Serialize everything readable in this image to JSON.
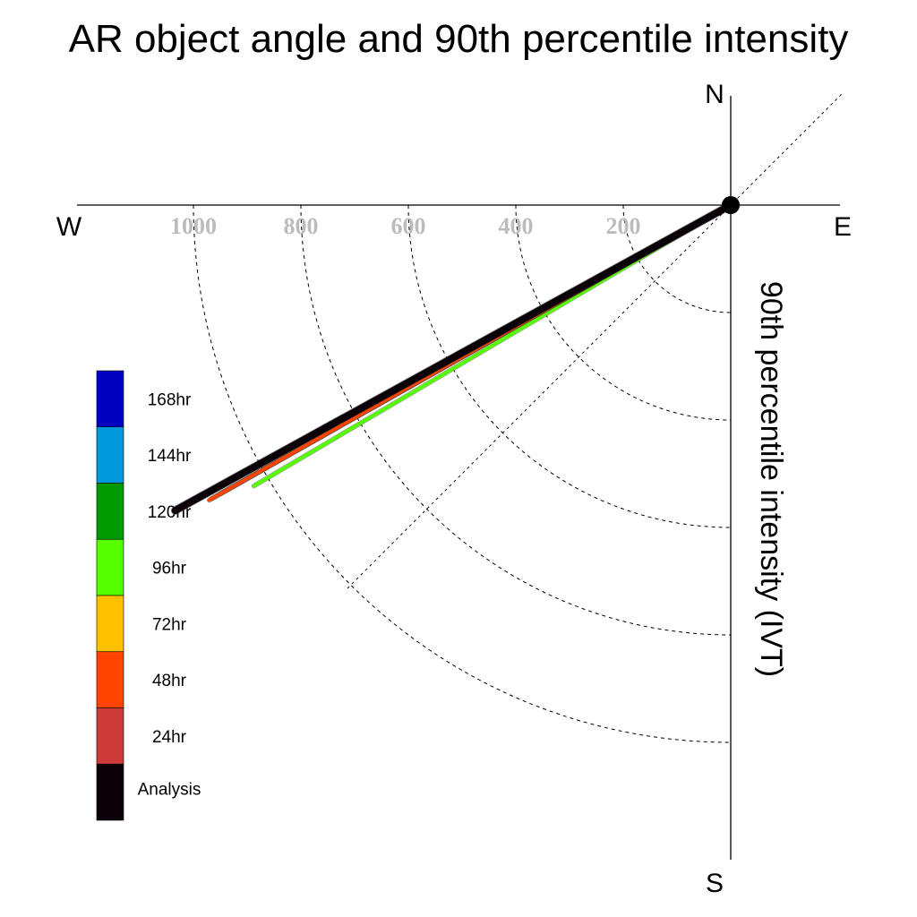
{
  "chart_data": {
    "type": "polar-vector",
    "title": "AR object angle and 90th percentile intensity",
    "ylabel": "90th percentile intensity (IVT)",
    "compass": {
      "north": "N",
      "south": "S",
      "east": "E",
      "west": "W"
    },
    "radial_ticks": [
      "200",
      "400",
      "600",
      "800",
      "1000"
    ],
    "radial_tick_values": [
      200,
      400,
      600,
      800,
      1000
    ],
    "rlim": [
      0,
      1200
    ],
    "grid": true,
    "legend_position": "left",
    "series": [
      {
        "name": "144hr",
        "color": "#0099dd",
        "angle_deg": 209.5,
        "intensity": 770
      },
      {
        "name": "96hr",
        "color": "#55ff00",
        "angle_deg": 210.5,
        "intensity": 1030
      },
      {
        "name": "120hr",
        "color": "#009900",
        "angle_deg": 209.5,
        "intensity": 1090
      },
      {
        "name": "24hr",
        "color": "#cc3a3a",
        "angle_deg": 209.5,
        "intensity": 1110
      },
      {
        "name": "48hr",
        "color": "#ff4400",
        "angle_deg": 209.5,
        "intensity": 1115
      },
      {
        "name": "Analysis",
        "color": "#0b0108",
        "angle_deg": 208.8,
        "intensity": 1180
      }
    ],
    "legend": [
      {
        "label": "168hr",
        "color": "#0000c0"
      },
      {
        "label": "144hr",
        "color": "#0099dd"
      },
      {
        "label": "120hr",
        "color": "#009900"
      },
      {
        "label": "96hr",
        "color": "#55ff00"
      },
      {
        "label": "72hr",
        "color": "#ffc000"
      },
      {
        "label": "48hr",
        "color": "#ff4400"
      },
      {
        "label": "24hr",
        "color": "#cc3a3a"
      },
      {
        "label": "Analysis",
        "color": "#0b0108"
      }
    ]
  }
}
